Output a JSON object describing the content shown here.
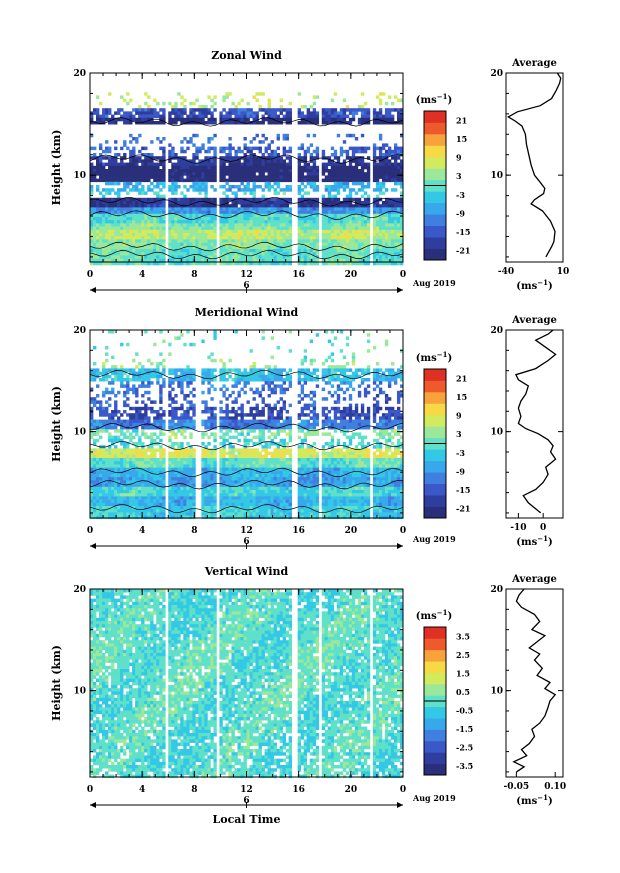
{
  "chart_data": [
    {
      "type": "heatmap",
      "title": "Zonal Wind",
      "ylabel": "Height (km)",
      "xlim": [
        0,
        24
      ],
      "ylim": [
        1.5,
        20
      ],
      "x_ticks": [
        "0",
        "4",
        "8",
        "12",
        "16",
        "20",
        "0"
      ],
      "y_ticks": [
        "20",
        "10"
      ],
      "date_label": "6",
      "date_suffix": "Aug 2019",
      "colorbar": {
        "unit": "(ms",
        "unit_sup": "−1",
        "ticks": [
          "21",
          "15",
          "9",
          "3",
          "-3",
          "-9",
          "-15",
          "-21"
        ],
        "range": [
          -24,
          24
        ]
      },
      "gaps_hours": [
        5.8,
        9.8,
        15.7,
        17.6,
        21.6
      ],
      "layers": [
        {
          "y0": 18.0,
          "y1": 20.0,
          "v": null,
          "cov": 0.0
        },
        {
          "y0": 16.5,
          "y1": 18.0,
          "v": 6,
          "cov": 0.2
        },
        {
          "y0": 15.6,
          "y1": 16.5,
          "v": -16,
          "cov": 0.8
        },
        {
          "y0": 15.0,
          "y1": 15.6,
          "v": -22,
          "cov": 0.9
        },
        {
          "y0": 14.0,
          "y1": 15.0,
          "v": 0,
          "cov": 0.0
        },
        {
          "y0": 12.8,
          "y1": 14.0,
          "v": -12,
          "cov": 0.15
        },
        {
          "y0": 11.8,
          "y1": 12.8,
          "v": -14,
          "cov": 0.55
        },
        {
          "y0": 11.0,
          "y1": 11.8,
          "v": -20,
          "cov": 0.85
        },
        {
          "y0": 9.3,
          "y1": 11.0,
          "v": -23,
          "cov": 0.97
        },
        {
          "y0": 8.4,
          "y1": 9.3,
          "v": -6,
          "cov": 0.6
        },
        {
          "y0": 7.7,
          "y1": 8.4,
          "v": -2,
          "cov": 0.3
        },
        {
          "y0": 7.0,
          "y1": 7.7,
          "v": -20,
          "cov": 0.97
        },
        {
          "y0": 6.3,
          "y1": 7.0,
          "v": -9,
          "cov": 1.0
        },
        {
          "y0": 5.4,
          "y1": 6.3,
          "v": -1,
          "cov": 1.0
        },
        {
          "y0": 4.6,
          "y1": 5.4,
          "v": 2,
          "cov": 1.0
        },
        {
          "y0": 3.7,
          "y1": 4.6,
          "v": 6,
          "cov": 1.0
        },
        {
          "y0": 2.8,
          "y1": 3.7,
          "v": 2,
          "cov": 1.0
        },
        {
          "y0": 1.5,
          "y1": 2.8,
          "v": 0,
          "cov": 1.0
        }
      ],
      "average": {
        "title": "Average",
        "xlim": [
          -40,
          10
        ],
        "ylim": [
          1.5,
          20
        ],
        "x_ticks": [
          "-40",
          "10"
        ],
        "y_ticks": [
          "20",
          "10"
        ],
        "xunit": "(ms",
        "xunit_sup": "−1",
        "profile": [
          [
            2.0,
            -5
          ],
          [
            3.0,
            0
          ],
          [
            3.5,
            2
          ],
          [
            4.5,
            3
          ],
          [
            5.5,
            -1
          ],
          [
            6.5,
            -8
          ],
          [
            7.2,
            -18
          ],
          [
            7.6,
            -15
          ],
          [
            8.2,
            -7
          ],
          [
            8.7,
            -6
          ],
          [
            9.3,
            -10
          ],
          [
            10.0,
            -15
          ],
          [
            11.0,
            -18
          ],
          [
            12.0,
            -20
          ],
          [
            13.0,
            -22
          ],
          [
            14.0,
            -23
          ],
          [
            14.8,
            -26
          ],
          [
            15.3,
            -32
          ],
          [
            15.7,
            -38
          ],
          [
            16.2,
            -30
          ],
          [
            16.8,
            -10
          ],
          [
            17.5,
            0
          ],
          [
            18.3,
            4
          ],
          [
            19.0,
            7
          ],
          [
            19.5,
            8
          ],
          [
            20.0,
            5
          ]
        ]
      }
    },
    {
      "type": "heatmap",
      "title": "Meridional Wind",
      "ylabel": "Height (km)",
      "xlim": [
        0,
        24
      ],
      "ylim": [
        1.5,
        20
      ],
      "x_ticks": [
        "0",
        "4",
        "8",
        "12",
        "16",
        "20",
        "0"
      ],
      "y_ticks": [
        "20",
        "10"
      ],
      "date_label": "6",
      "date_suffix": "Aug 2019",
      "colorbar": {
        "unit": "(ms",
        "unit_sup": "−1",
        "ticks": [
          "21",
          "15",
          "9",
          "3",
          "-3",
          "-9",
          "-15",
          "-21"
        ],
        "range": [
          -24,
          24
        ]
      },
      "gaps_hours": [
        5.8,
        8.3,
        9.8,
        15.7,
        17.6,
        21.6
      ],
      "layers": [
        {
          "y0": 17.3,
          "y1": 20.0,
          "v": 0,
          "cov": 0.05
        },
        {
          "y0": 16.3,
          "y1": 17.3,
          "v": 3,
          "cov": 0.2
        },
        {
          "y0": 15.0,
          "y1": 16.3,
          "v": -5,
          "cov": 0.85
        },
        {
          "y0": 13.8,
          "y1": 15.0,
          "v": -12,
          "cov": 0.35
        },
        {
          "y0": 12.5,
          "y1": 13.8,
          "v": -14,
          "cov": 0.3
        },
        {
          "y0": 11.3,
          "y1": 12.5,
          "v": -16,
          "cov": 0.65
        },
        {
          "y0": 10.1,
          "y1": 11.3,
          "v": -11,
          "cov": 0.95
        },
        {
          "y0": 9.2,
          "y1": 10.1,
          "v": 2,
          "cov": 0.5
        },
        {
          "y0": 8.4,
          "y1": 9.2,
          "v": -2,
          "cov": 0.45
        },
        {
          "y0": 7.5,
          "y1": 8.4,
          "v": 8,
          "cov": 0.9
        },
        {
          "y0": 6.5,
          "y1": 7.5,
          "v": 0,
          "cov": 1.0
        },
        {
          "y0": 5.6,
          "y1": 6.5,
          "v": -6,
          "cov": 1.0
        },
        {
          "y0": 4.6,
          "y1": 5.6,
          "v": -8,
          "cov": 1.0
        },
        {
          "y0": 3.6,
          "y1": 4.6,
          "v": -2,
          "cov": 1.0
        },
        {
          "y0": 2.6,
          "y1": 3.6,
          "v": -6,
          "cov": 1.0
        },
        {
          "y0": 1.5,
          "y1": 2.6,
          "v": -3,
          "cov": 1.0
        }
      ],
      "average": {
        "title": "Average",
        "xlim": [
          -15,
          8
        ],
        "ylim": [
          1.5,
          20
        ],
        "x_ticks": [
          "-10",
          "0"
        ],
        "x_tick_values": [
          -10,
          0
        ],
        "y_ticks": [
          "20",
          "10"
        ],
        "xunit": "(ms",
        "xunit_sup": "−1",
        "profile": [
          [
            2.0,
            -1
          ],
          [
            3.0,
            -6
          ],
          [
            3.7,
            -8
          ],
          [
            4.3,
            -3
          ],
          [
            5.0,
            0
          ],
          [
            5.8,
            2
          ],
          [
            6.5,
            1
          ],
          [
            7.3,
            5
          ],
          [
            8.0,
            3
          ],
          [
            8.6,
            4
          ],
          [
            9.2,
            2
          ],
          [
            9.8,
            -2
          ],
          [
            10.3,
            -7
          ],
          [
            10.8,
            -10
          ],
          [
            11.5,
            -9
          ],
          [
            12.3,
            -10
          ],
          [
            13.0,
            -9
          ],
          [
            13.7,
            -7
          ],
          [
            14.5,
            -6
          ],
          [
            15.1,
            -10
          ],
          [
            15.6,
            -11
          ],
          [
            16.2,
            -3
          ],
          [
            17.0,
            2
          ],
          [
            17.6,
            5
          ],
          [
            18.3,
            1
          ],
          [
            19.0,
            -3
          ],
          [
            19.6,
            2
          ],
          [
            20.0,
            4
          ]
        ]
      }
    },
    {
      "type": "heatmap",
      "title": "Vertical Wind",
      "ylabel": "Height (km)",
      "xlabel": "Local Time",
      "xlim": [
        0,
        24
      ],
      "ylim": [
        1.5,
        20
      ],
      "x_ticks": [
        "0",
        "4",
        "8",
        "12",
        "16",
        "20",
        "0"
      ],
      "y_ticks": [
        "20",
        "10"
      ],
      "date_label": "6",
      "date_suffix": "Aug 2019",
      "colorbar": {
        "unit": "(ms",
        "unit_sup": "−1",
        "ticks": [
          "3.5",
          "2.5",
          "1.5",
          "0.5",
          "-0.5",
          "-1.5",
          "-2.5",
          "-3.5"
        ],
        "range": [
          -4,
          4
        ]
      },
      "gaps_hours": [
        5.8,
        9.8,
        15.7,
        17.6,
        21.6
      ],
      "layers": [
        {
          "y0": 18.0,
          "y1": 20.0,
          "v": -0.2,
          "cov": 0.85
        },
        {
          "y0": 15.0,
          "y1": 18.0,
          "v": -0.1,
          "cov": 0.9
        },
        {
          "y0": 12.0,
          "y1": 15.0,
          "v": 0.0,
          "cov": 0.9
        },
        {
          "y0": 9.0,
          "y1": 12.0,
          "v": -0.05,
          "cov": 0.85
        },
        {
          "y0": 6.0,
          "y1": 9.0,
          "v": -0.1,
          "cov": 0.85
        },
        {
          "y0": 1.5,
          "y1": 6.0,
          "v": -0.15,
          "cov": 0.8
        }
      ],
      "average": {
        "title": "Average",
        "xlim": [
          -0.09,
          0.13
        ],
        "ylim": [
          1.5,
          20
        ],
        "x_ticks": [
          "-0.05",
          "0.10"
        ],
        "x_tick_values": [
          -0.05,
          0.1
        ],
        "y_ticks": [
          "20",
          "10"
        ],
        "xunit": "(ms",
        "xunit_sup": "−1",
        "profile": [
          [
            2.0,
            -0.05
          ],
          [
            2.5,
            -0.02
          ],
          [
            3.0,
            -0.06
          ],
          [
            3.6,
            -0.01
          ],
          [
            4.2,
            -0.03
          ],
          [
            4.8,
            0.0
          ],
          [
            5.5,
            0.02
          ],
          [
            6.2,
            0.01
          ],
          [
            6.8,
            0.04
          ],
          [
            7.5,
            0.06
          ],
          [
            8.2,
            0.07
          ],
          [
            9.0,
            0.08
          ],
          [
            9.6,
            0.1
          ],
          [
            10.2,
            0.06
          ],
          [
            10.8,
            0.08
          ],
          [
            11.5,
            0.03
          ],
          [
            12.2,
            0.05
          ],
          [
            13.0,
            0.02
          ],
          [
            13.6,
            0.04
          ],
          [
            14.2,
            0.0
          ],
          [
            14.8,
            0.03
          ],
          [
            15.4,
            0.06
          ],
          [
            16.0,
            0.01
          ],
          [
            16.8,
            0.04
          ],
          [
            17.5,
            0.02
          ],
          [
            18.2,
            -0.03
          ],
          [
            18.8,
            -0.05
          ],
          [
            19.4,
            -0.04
          ],
          [
            20.0,
            -0.02
          ]
        ]
      }
    }
  ]
}
